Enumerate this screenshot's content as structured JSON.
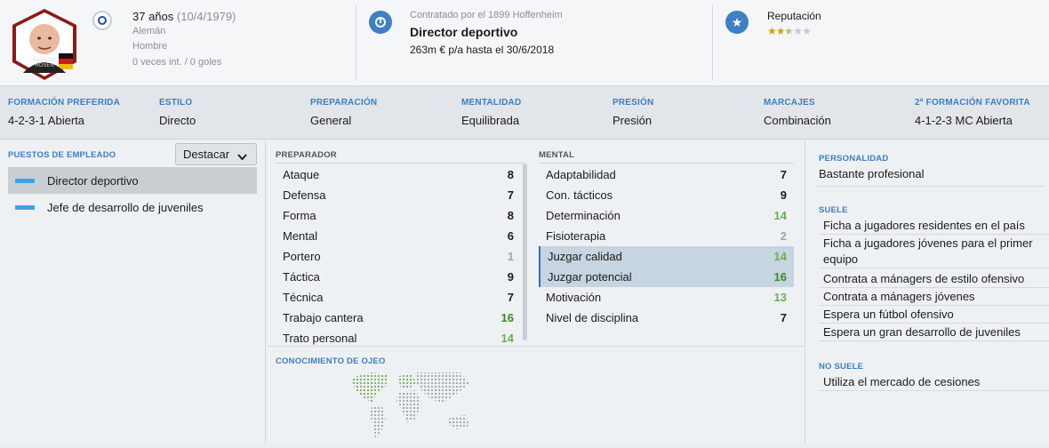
{
  "header": {
    "age_line": "37 años",
    "birth_date": "(10/4/1979)",
    "nationality": "Alemán",
    "gender": "Hombre",
    "caps_goals": "0 veces int. / 0 goles",
    "badge_name_line1": "Alexander",
    "badge_name_line2": "ROSEN",
    "contracted_by": "Contratado por el 1899 Hoffenheim",
    "job_title": "Director deportivo",
    "salary": "263m € p/a hasta el 30/6/2018",
    "reputation_label": "Reputación",
    "reputation_stars": 2.5,
    "reputation_max": 5
  },
  "tactics": [
    {
      "label": "FORMACIÓN PREFERIDA",
      "value": "4-2-3-1 Abierta"
    },
    {
      "label": "ESTILO",
      "value": "Directo"
    },
    {
      "label": "PREPARACIÓN",
      "value": "General"
    },
    {
      "label": "MENTALIDAD",
      "value": "Equilibrada"
    },
    {
      "label": "PRESIÓN",
      "value": "Presión"
    },
    {
      "label": "MARCAJES",
      "value": "Combinación"
    },
    {
      "label": "2ª FORMACIÓN FAVORITA",
      "value": "4-1-2-3 MC Abierta"
    }
  ],
  "roles": {
    "label": "PUESTOS DE EMPLEADO",
    "dropdown": "Destacar",
    "items": [
      "Director deportivo",
      "Jefe de desarrollo de juveniles"
    ]
  },
  "preparador": {
    "label": "PREPARADOR",
    "rows": [
      {
        "name": "Ataque",
        "value": "8"
      },
      {
        "name": "Defensa",
        "value": "7"
      },
      {
        "name": "Forma",
        "value": "8"
      },
      {
        "name": "Mental",
        "value": "6"
      },
      {
        "name": "Portero",
        "value": "1"
      },
      {
        "name": "Táctica",
        "value": "9"
      },
      {
        "name": "Técnica",
        "value": "7"
      },
      {
        "name": "Trabajo cantera",
        "value": "16"
      },
      {
        "name": "Trato personal",
        "value": "14"
      }
    ]
  },
  "mental": {
    "label": "MENTAL",
    "rows": [
      {
        "name": "Adaptabilidad",
        "value": "7"
      },
      {
        "name": "Con. tácticos",
        "value": "9"
      },
      {
        "name": "Determinación",
        "value": "14"
      },
      {
        "name": "Fisioterapia",
        "value": "2"
      },
      {
        "name": "Juzgar calidad",
        "value": "14"
      },
      {
        "name": "Juzgar potencial",
        "value": "16"
      },
      {
        "name": "Motivación",
        "value": "13"
      },
      {
        "name": "Nivel de disciplina",
        "value": "7"
      }
    ]
  },
  "scouting": {
    "label": "CONOCIMIENTO DE OJEO",
    "countries": [
      {
        "name": "Estados Unidos",
        "level": 1.0
      },
      {
        "name": "Alemania",
        "level": 1.0
      },
      {
        "name": "Noruega",
        "level": 0.5
      }
    ]
  },
  "personality": {
    "label": "PERSONALIDAD",
    "value": "Bastante profesional"
  },
  "tends": {
    "label": "SUELE",
    "items": [
      "Ficha a jugadores residentes en el país",
      "Ficha a jugadores jóvenes para el primer equipo",
      "Contrata a mánagers de estilo ofensivo",
      "Contrata a mánagers jóvenes",
      "Espera un fútbol ofensivo",
      "Espera un gran desarrollo de juveniles"
    ]
  },
  "not_tends": {
    "label": "NO SUELE",
    "items": [
      "Utiliza el mercado de cesiones"
    ]
  }
}
